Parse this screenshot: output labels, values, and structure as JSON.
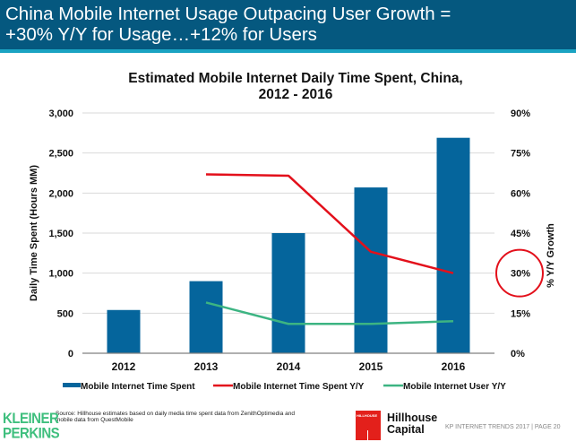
{
  "header": {
    "title": "China Mobile Internet Usage Outpacing User Growth =\n+30% Y/Y for Usage…+12% for Users"
  },
  "colors": {
    "header_bg": "#05587f",
    "header_strip": "#1aa3c2",
    "bar": "#05659c",
    "red_line": "#e3101b",
    "green_line": "#3cb482",
    "highlight_circle": "#e3101b"
  },
  "chart_data": {
    "type": "bar",
    "title": "Estimated Mobile Internet Daily Time Spent, China,\n2012 - 2016",
    "xlabel": "",
    "ylabel": "Daily Time Spent (Hours MM)",
    "y2label": "% Y/Y Growth",
    "categories": [
      "2012",
      "2013",
      "2014",
      "2015",
      "2016"
    ],
    "ylim": [
      0,
      3000
    ],
    "yticks": [
      0,
      500,
      1000,
      1500,
      2000,
      2500,
      3000
    ],
    "ytick_labels": [
      "0",
      "500",
      "1,000",
      "1,500",
      "2,000",
      "2,500",
      "3,000"
    ],
    "y2lim": [
      0,
      90
    ],
    "y2ticks": [
      0,
      15,
      30,
      45,
      60,
      75,
      90
    ],
    "y2tick_labels": [
      "0%",
      "15%",
      "30%",
      "45%",
      "60%",
      "75%",
      "90%"
    ],
    "grid": true,
    "legend_position": "bottom",
    "series": [
      {
        "name": "Mobile Internet Time Spent",
        "type": "bar",
        "axis": "left",
        "values": [
          540,
          900,
          1500,
          2070,
          2690
        ]
      },
      {
        "name": "Mobile Internet Time Spent Y/Y",
        "type": "line",
        "axis": "right",
        "values": [
          null,
          67,
          66.5,
          38,
          30
        ]
      },
      {
        "name": "Mobile Internet User Y/Y",
        "type": "line",
        "axis": "right",
        "values": [
          null,
          19,
          11,
          11,
          12
        ]
      }
    ],
    "annotations": [
      {
        "type": "circle",
        "target": "y2tick",
        "value": 30,
        "label": "30%"
      }
    ]
  },
  "footer": {
    "source": "Source: Hillhouse estimates based on daily media time spent data from ZenithOptimedia and mobile data from QuestMobile",
    "kp_logo": "KLEINER\nPERKINS",
    "hillhouse_box_text": "HILLHOUSE",
    "hillhouse_name": "Hillhouse\nCapital",
    "page_label": "KP INTERNET TRENDS 2017  |  PAGE 20"
  }
}
